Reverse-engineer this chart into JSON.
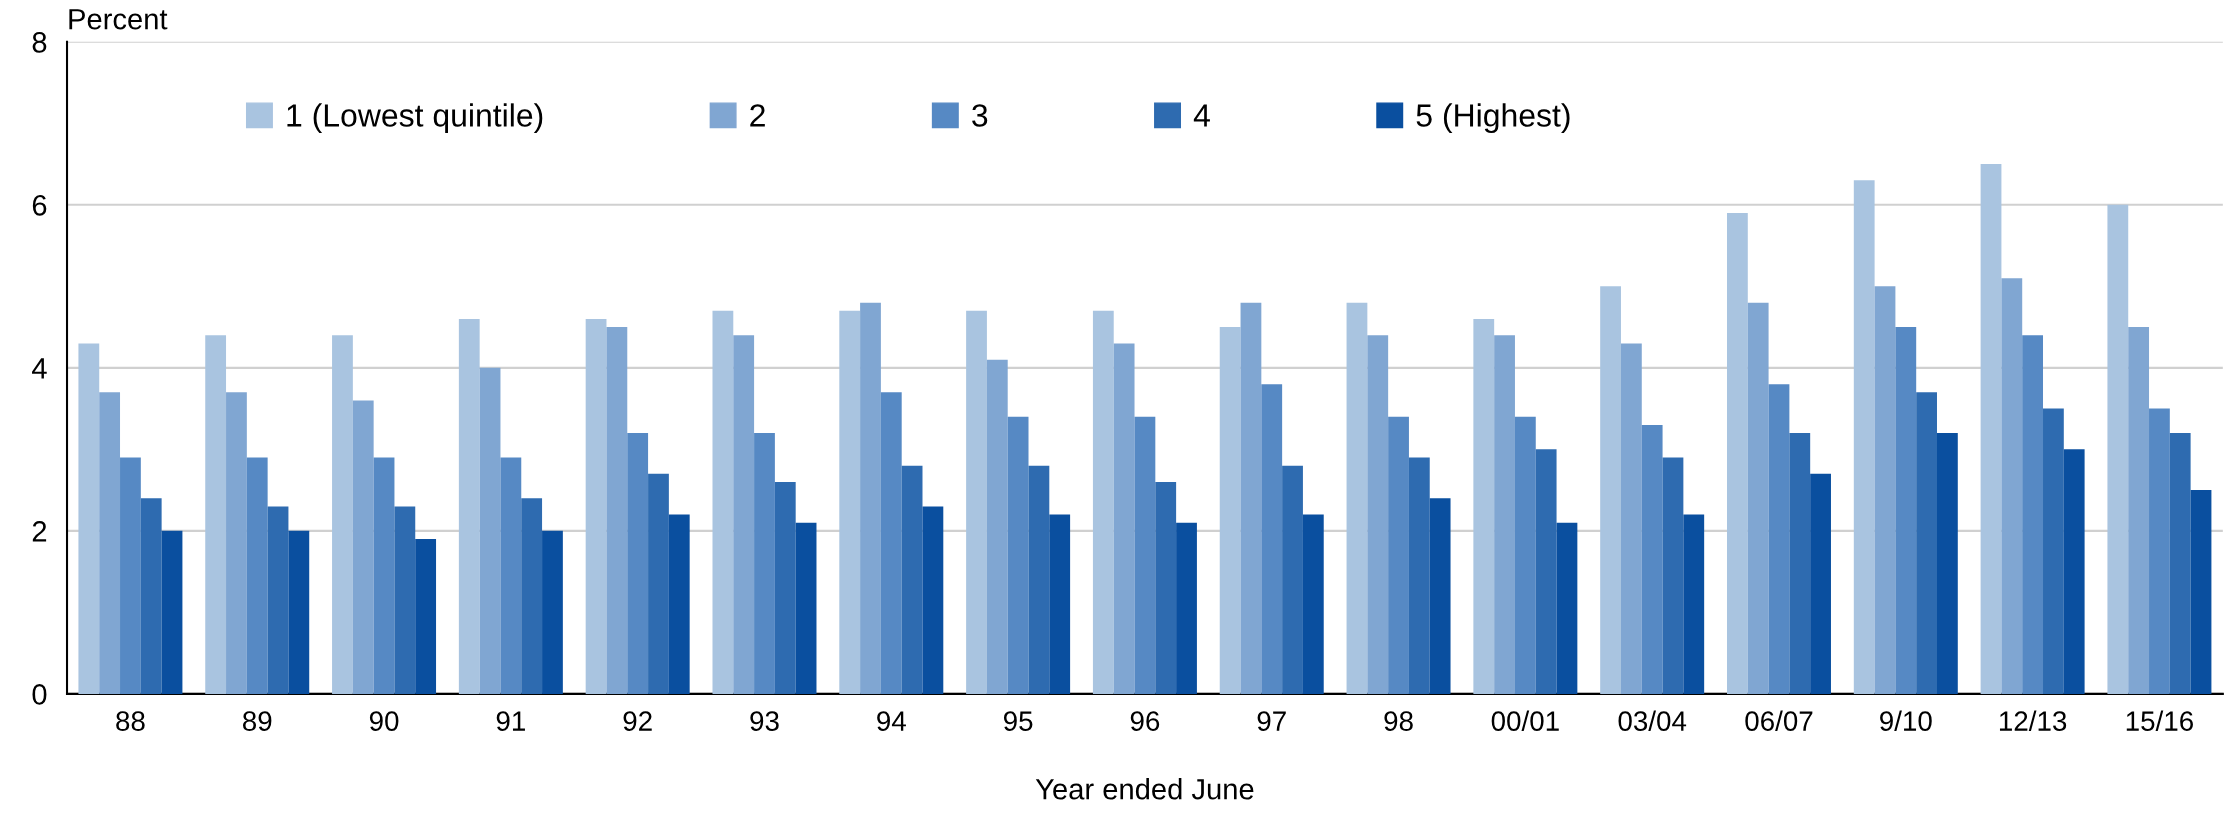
{
  "chart_data": {
    "type": "bar",
    "ylabel": "Percent",
    "xlabel": "Year ended June",
    "categories": [
      "88",
      "89",
      "90",
      "91",
      "92",
      "93",
      "94",
      "95",
      "96",
      "97",
      "98",
      "00/01",
      "03/04",
      "06/07",
      "9/10",
      "12/13",
      "15/16"
    ],
    "series": [
      {
        "name": "1 (Lowest quintile)",
        "color": "#a9c4e0",
        "values": [
          4.3,
          4.4,
          4.4,
          4.6,
          4.6,
          4.7,
          4.7,
          4.7,
          4.7,
          4.5,
          4.8,
          4.6,
          5.0,
          5.9,
          6.3,
          6.5,
          6.0
        ]
      },
      {
        "name": "2",
        "color": "#80a6d2",
        "values": [
          3.7,
          3.7,
          3.6,
          4.0,
          4.5,
          4.4,
          4.8,
          4.1,
          4.3,
          4.8,
          4.4,
          4.4,
          4.3,
          4.8,
          5.0,
          5.1,
          4.5
        ]
      },
      {
        "name": "3",
        "color": "#5689c4",
        "values": [
          2.9,
          2.9,
          2.9,
          2.9,
          3.2,
          3.2,
          3.7,
          3.4,
          3.4,
          3.8,
          3.4,
          3.4,
          3.3,
          3.8,
          4.5,
          4.4,
          3.5
        ]
      },
      {
        "name": "4",
        "color": "#2e6bb0",
        "values": [
          2.4,
          2.3,
          2.3,
          2.4,
          2.7,
          2.6,
          2.8,
          2.8,
          2.6,
          2.8,
          2.9,
          3.0,
          2.9,
          3.2,
          3.7,
          3.5,
          3.2
        ]
      },
      {
        "name": "5 (Highest)",
        "color": "#0a4f9f",
        "values": [
          2.0,
          2.0,
          1.9,
          2.0,
          2.2,
          2.1,
          2.3,
          2.2,
          2.1,
          2.2,
          2.4,
          2.1,
          2.2,
          2.7,
          3.2,
          3.0,
          2.5
        ]
      }
    ],
    "ylim": [
      0,
      8
    ],
    "yticks": [
      0,
      2,
      4,
      6,
      8
    ],
    "grid": "y",
    "legend": "top left"
  }
}
